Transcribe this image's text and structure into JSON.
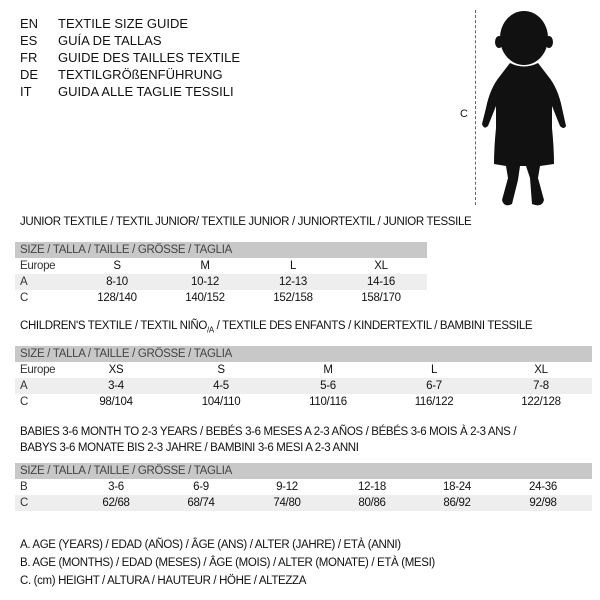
{
  "header": {
    "languages": [
      {
        "code": "EN",
        "text": "TEXTILE SIZE GUIDE"
      },
      {
        "code": "ES",
        "text": "GUÍA DE TALLAS"
      },
      {
        "code": "FR",
        "text": "GUIDE DES TAILLES TEXTILE"
      },
      {
        "code": "DE",
        "text": "TEXTILGRÖßENFÜHRUNG"
      },
      {
        "code": "IT",
        "text": "GUIDA ALLE TAGLIE TESSILI"
      }
    ],
    "figure_label": "C",
    "figure_icon": "baby-silhouette-icon"
  },
  "junior": {
    "title": "JUNIOR TEXTILE / TEXTIL JUNIOR/ TEXTILE JUNIOR / JUNIORTEXTIL / JUNIOR TESSILE",
    "header": "SIZE / TALLA / TAILLE / GRÖSSE / TAGLIA",
    "rows": [
      {
        "label": "Europe",
        "cells": [
          "S",
          "M",
          "L",
          "XL"
        ]
      },
      {
        "label": "A",
        "cells": [
          "8-10",
          "10-12",
          "12-13",
          "14-16"
        ]
      },
      {
        "label": "C",
        "cells": [
          "128/140",
          "140/152",
          "152/158",
          "158/170"
        ]
      }
    ]
  },
  "children": {
    "title_pre": "CHILDREN'S TEXTILE / TEXTIL NIÑO",
    "title_sub": "/A",
    "title_post": " / TEXTILE DES ENFANTS / KINDERTEXTIL / BAMBINI TESSILE",
    "header": "SIZE / TALLA / TAILLE / GRÖSSE / TAGLIA",
    "rows": [
      {
        "label": "Europe",
        "cells": [
          "XS",
          "S",
          "M",
          "L",
          "XL"
        ]
      },
      {
        "label": "A",
        "cells": [
          "3-4",
          "4-5",
          "5-6",
          "6-7",
          "7-8"
        ]
      },
      {
        "label": "C",
        "cells": [
          "98/104",
          "104/110",
          "110/116",
          "116/122",
          "122/128"
        ]
      }
    ]
  },
  "babies": {
    "title_line1": "BABIES 3-6 MONTH TO 2-3 YEARS / BEBÉS 3-6 MESES A 2-3 AÑOS / BÉBÉS 3-6 MOIS À 2-3 ANS /",
    "title_line2": "BABYS 3-6 MONATE BIS 2-3 JAHRE / BAMBINI 3-6 MESI A 2-3 ANNI",
    "header": "SIZE / TALLA / TAILLE / GRÖSSE / TAGLIA",
    "rows": [
      {
        "label": "B",
        "cells": [
          "3-6",
          "6-9",
          "9-12",
          "12-18",
          "18-24",
          "24-36"
        ]
      },
      {
        "label": "C",
        "cells": [
          "62/68",
          "68/74",
          "74/80",
          "80/86",
          "86/92",
          "92/98"
        ]
      }
    ]
  },
  "legend": [
    "A. AGE (YEARS) / EDAD (AÑOS) / ÂGE (ANS) / ALTER (JAHRE) / ETÀ (ANNI)",
    "B. AGE (MONTHS) / EDAD (MESES) / ÂGE (MOIS) / ALTER (MONATE) / ETÀ (MESI)",
    "C. (cm) HEIGHT / ALTURA / HAUTEUR / HÖHE / ALTEZZA"
  ]
}
